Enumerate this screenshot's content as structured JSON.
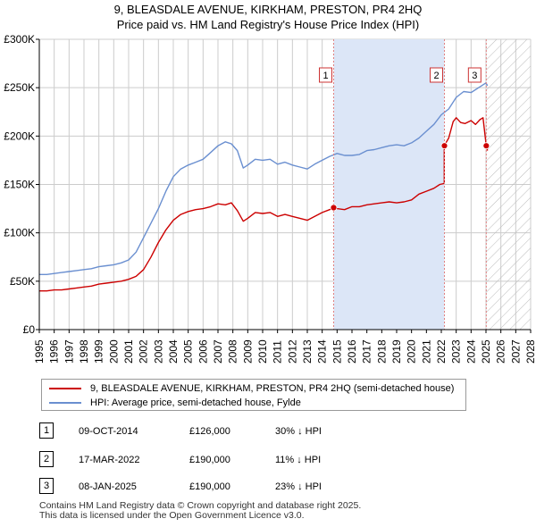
{
  "title_line1": "9, BLEASDALE AVENUE, KIRKHAM, PRESTON, PR4 2HQ",
  "title_line2": "Price paid vs. HM Land Registry's House Price Index (HPI)",
  "colors": {
    "price_line": "#cc0000",
    "hpi_line": "#6a8fd0",
    "shade": "#dce6f7",
    "grid": "#cccccc",
    "marker_line": "#e08080"
  },
  "chart_data": {
    "type": "line",
    "title": "Price paid vs. HM Land Registry's House Price Index (HPI)",
    "xlim": [
      1995,
      2028
    ],
    "ylim": [
      0,
      300000
    ],
    "x_ticks": [
      "1995",
      "1996",
      "1997",
      "1998",
      "1999",
      "2000",
      "2001",
      "2002",
      "2003",
      "2004",
      "2005",
      "2006",
      "2007",
      "2008",
      "2009",
      "2010",
      "2011",
      "2012",
      "2013",
      "2014",
      "2015",
      "2016",
      "2017",
      "2018",
      "2019",
      "2020",
      "2021",
      "2022",
      "2023",
      "2024",
      "2025",
      "2026",
      "2027",
      "2028"
    ],
    "y_ticks": [
      {
        "value": 0,
        "label": "£0"
      },
      {
        "value": 50000,
        "label": "£50K"
      },
      {
        "value": 100000,
        "label": "£100K"
      },
      {
        "value": 150000,
        "label": "£150K"
      },
      {
        "value": 200000,
        "label": "£200K"
      },
      {
        "value": 250000,
        "label": "£250K"
      },
      {
        "value": 300000,
        "label": "£300K"
      }
    ],
    "series": [
      {
        "name": "9, BLEASDALE AVENUE, KIRKHAM, PRESTON, PR4 2HQ (semi-detached house)",
        "color": "#cc0000",
        "x": [
          1995.0,
          1995.5,
          1996.0,
          1996.5,
          1997.0,
          1997.5,
          1998.0,
          1998.5,
          1999.0,
          1999.5,
          2000.0,
          2000.5,
          2001.0,
          2001.5,
          2002.0,
          2002.5,
          2003.0,
          2003.5,
          2004.0,
          2004.5,
          2005.0,
          2005.5,
          2006.0,
          2006.5,
          2007.0,
          2007.5,
          2007.9,
          2008.3,
          2008.7,
          2009.0,
          2009.5,
          2010.0,
          2010.5,
          2011.0,
          2011.5,
          2012.0,
          2012.5,
          2013.0,
          2013.5,
          2014.0,
          2014.5,
          2014.77,
          2015.0,
          2015.5,
          2016.0,
          2016.5,
          2017.0,
          2017.5,
          2018.0,
          2018.5,
          2019.0,
          2019.5,
          2020.0,
          2020.5,
          2021.0,
          2021.5,
          2021.9,
          2022.2,
          2022.2,
          2022.5,
          2022.8,
          2023.0,
          2023.3,
          2023.6,
          2024.0,
          2024.3,
          2024.6,
          2024.8,
          2025.02,
          2025.1
        ],
        "y": [
          40000,
          40000,
          41000,
          41000,
          42000,
          43000,
          44000,
          45000,
          47000,
          48000,
          49000,
          50000,
          52000,
          55000,
          62000,
          75000,
          90000,
          103000,
          113000,
          119000,
          122000,
          124000,
          125000,
          127000,
          130000,
          129000,
          131000,
          123000,
          112000,
          115000,
          121000,
          120000,
          121000,
          117000,
          119000,
          117000,
          115000,
          113000,
          117000,
          121000,
          124000,
          126000,
          125000,
          124000,
          127000,
          127000,
          129000,
          130000,
          131000,
          132000,
          131000,
          132000,
          134000,
          140000,
          143000,
          146000,
          150000,
          151000,
          190000,
          198000,
          215000,
          219000,
          214000,
          213000,
          216000,
          212000,
          217000,
          219000,
          190000,
          185000
        ]
      },
      {
        "name": "HPI: Average price, semi-detached house, Fylde",
        "color": "#6a8fd0",
        "x": [
          1995.0,
          1995.5,
          1996.0,
          1996.5,
          1997.0,
          1997.5,
          1998.0,
          1998.5,
          1999.0,
          1999.5,
          2000.0,
          2000.5,
          2001.0,
          2001.5,
          2002.0,
          2002.5,
          2003.0,
          2003.5,
          2004.0,
          2004.5,
          2005.0,
          2005.5,
          2006.0,
          2006.5,
          2007.0,
          2007.5,
          2007.9,
          2008.3,
          2008.7,
          2009.0,
          2009.5,
          2010.0,
          2010.5,
          2011.0,
          2011.5,
          2012.0,
          2012.5,
          2013.0,
          2013.5,
          2014.0,
          2014.5,
          2015.0,
          2015.5,
          2016.0,
          2016.5,
          2017.0,
          2017.5,
          2018.0,
          2018.5,
          2019.0,
          2019.5,
          2020.0,
          2020.5,
          2021.0,
          2021.5,
          2022.0,
          2022.5,
          2023.0,
          2023.5,
          2024.0,
          2024.5,
          2025.0,
          2025.1
        ],
        "y": [
          57000,
          57000,
          58000,
          59000,
          60000,
          61000,
          62000,
          63000,
          65000,
          66000,
          67000,
          69000,
          72000,
          80000,
          95000,
          110000,
          125000,
          143000,
          158000,
          166000,
          170000,
          173000,
          176000,
          183000,
          190000,
          194000,
          192000,
          185000,
          167000,
          170000,
          176000,
          175000,
          176000,
          171000,
          173000,
          170000,
          168000,
          166000,
          171000,
          175000,
          179000,
          182000,
          180000,
          180000,
          181000,
          185000,
          186000,
          188000,
          190000,
          191000,
          190000,
          193000,
          198000,
          205000,
          212000,
          222000,
          228000,
          240000,
          246000,
          245000,
          250000,
          255000,
          252000
        ]
      }
    ],
    "sales": [
      {
        "marker": "1",
        "x": 2014.77,
        "price": 126000,
        "date": "09-OCT-2014",
        "price_label": "£126,000",
        "hpi": "30% ↓ HPI"
      },
      {
        "marker": "2",
        "x": 2022.21,
        "price": 190000,
        "date": "17-MAR-2022",
        "price_label": "£190,000",
        "hpi": "11% ↓ HPI"
      },
      {
        "marker": "3",
        "x": 2025.02,
        "price": 190000,
        "date": "08-JAN-2025",
        "price_label": "£190,000",
        "hpi": "23% ↓ HPI"
      }
    ],
    "shaded_region": [
      2014.77,
      2022.21
    ],
    "hatched_region_start": 2025.02
  },
  "legend": {
    "price_label": "9, BLEASDALE AVENUE, KIRKHAM, PRESTON, PR4 2HQ (semi-detached house)",
    "hpi_label": "HPI: Average price, semi-detached house, Fylde"
  },
  "footer": {
    "line1": "Contains HM Land Registry data © Crown copyright and database right 2025.",
    "line2": "This data is licensed under the Open Government Licence v3.0."
  }
}
